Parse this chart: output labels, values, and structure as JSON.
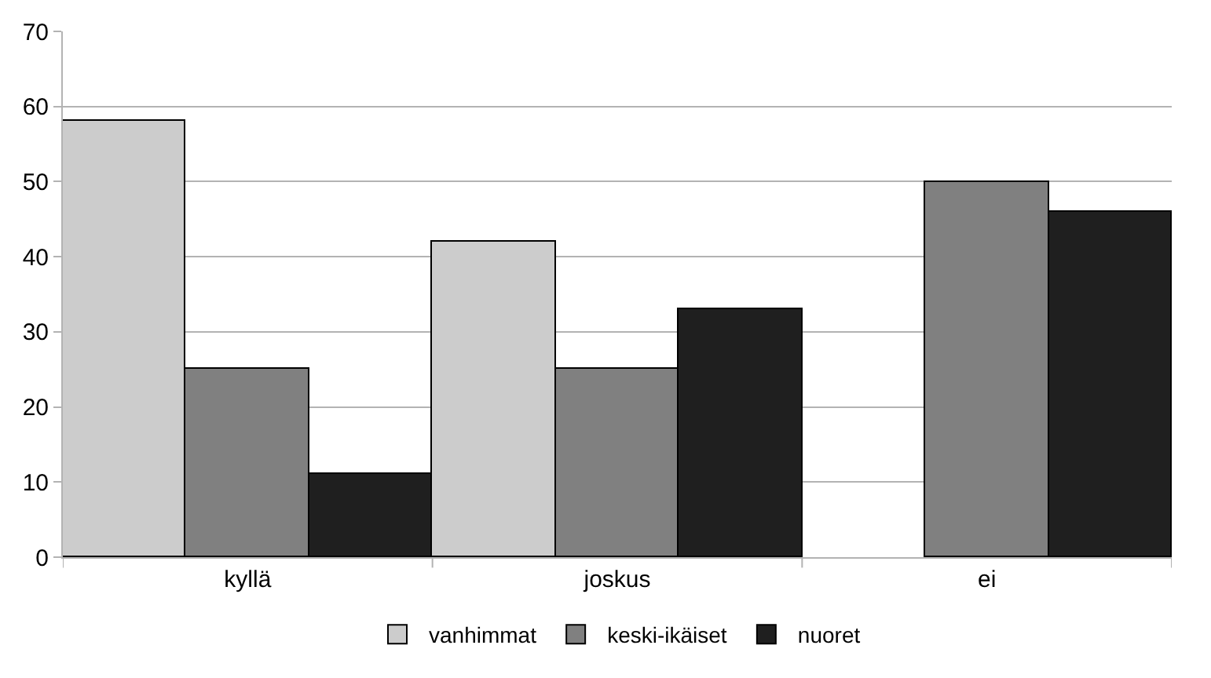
{
  "chart_data": {
    "type": "bar",
    "categories": [
      "kyllä",
      "joskus",
      "ei"
    ],
    "series": [
      {
        "name": "vanhimmat",
        "color": "#cccccc",
        "values": [
          58,
          42,
          null
        ]
      },
      {
        "name": "keski-ikäiset",
        "color": "#808080",
        "values": [
          25,
          25,
          50
        ]
      },
      {
        "name": "nuoret",
        "color": "#1f1f1f",
        "values": [
          11,
          33,
          46
        ]
      }
    ],
    "ylim": [
      0,
      70
    ],
    "yticks": [
      0,
      10,
      20,
      30,
      40,
      50,
      60,
      70
    ],
    "grid": "y",
    "legend": "bottom"
  }
}
